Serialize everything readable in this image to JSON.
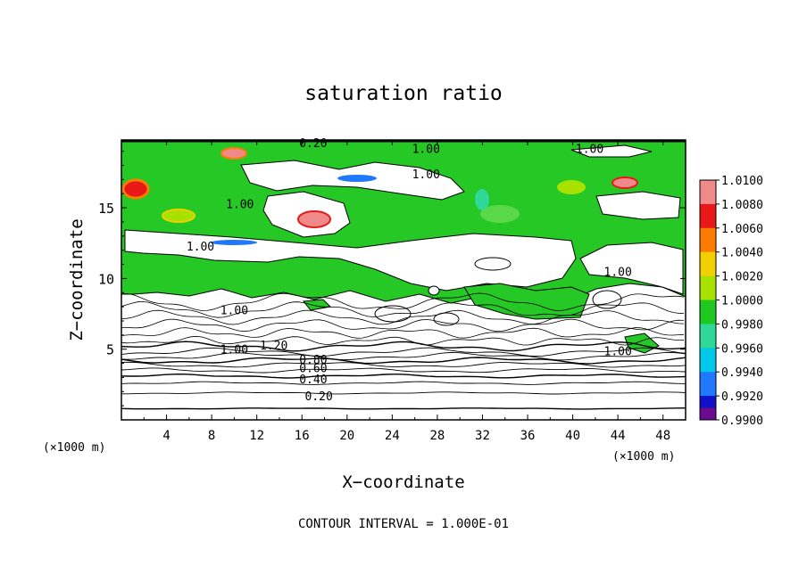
{
  "chart_data": {
    "type": "heatmap",
    "title": "saturation ratio",
    "xlabel": "X−coordinate",
    "ylabel": "Z−coordinate",
    "x_unit_left": "(×1000 m)",
    "x_unit_right": "(×1000 m)",
    "xlim": [
      0,
      50
    ],
    "ylim": [
      0,
      19.8
    ],
    "x_ticks": [
      4,
      8,
      12,
      16,
      20,
      24,
      28,
      32,
      36,
      40,
      44,
      48
    ],
    "y_ticks": [
      5,
      10,
      15
    ],
    "footer": "CONTOUR INTERVAL =  1.000E-01",
    "colorbar": {
      "levels": [
        "1.0100",
        "1.0080",
        "1.0060",
        "1.0040",
        "1.0020",
        "1.0000",
        "0.9980",
        "0.9960",
        "0.9940",
        "0.9920",
        "0.9900"
      ],
      "colors": [
        "#f08a8a",
        "#e81818",
        "#ff7a00",
        "#f2d000",
        "#a8e000",
        "#1ec81e",
        "#30d898",
        "#00c8e8",
        "#1f78ff",
        "#1010c8",
        "#6a0a90"
      ]
    },
    "contour_labels": [
      {
        "text": "0.20",
        "x": 17.0,
        "y": 19.6
      },
      {
        "text": "1.00",
        "x": 27.0,
        "y": 19.2
      },
      {
        "text": "1.00",
        "x": 41.5,
        "y": 19.2
      },
      {
        "text": "1.00",
        "x": 27.0,
        "y": 17.4
      },
      {
        "text": "1.00",
        "x": 10.5,
        "y": 15.3
      },
      {
        "text": "1.00",
        "x": 7.0,
        "y": 12.3
      },
      {
        "text": "1.00",
        "x": 44.0,
        "y": 10.5
      },
      {
        "text": "1.00",
        "x": 10.0,
        "y": 7.8
      },
      {
        "text": "1.00",
        "x": 10.0,
        "y": 5.0
      },
      {
        "text": "1.20",
        "x": 13.5,
        "y": 5.3
      },
      {
        "text": "0.80",
        "x": 17.0,
        "y": 4.3
      },
      {
        "text": "0.60",
        "x": 17.0,
        "y": 3.7
      },
      {
        "text": "0.40",
        "x": 17.0,
        "y": 2.9
      },
      {
        "text": "0.20",
        "x": 17.5,
        "y": 1.7
      },
      {
        "text": "1.00",
        "x": 44.0,
        "y": 4.9
      }
    ],
    "contour_lines_y": [
      0.8,
      1.9,
      2.6,
      3.1,
      3.5,
      3.9,
      4.2,
      4.5,
      4.8,
      5.2
    ]
  }
}
